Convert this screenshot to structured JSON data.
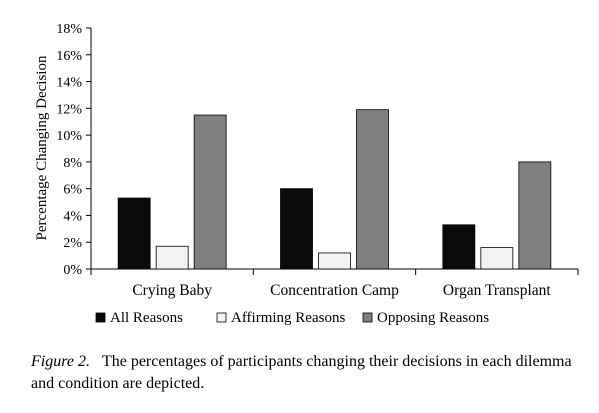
{
  "chart_data": {
    "type": "bar",
    "ylabel": "Percentage Changing Decision",
    "xlabel": "",
    "ylim": [
      0,
      18
    ],
    "yticks": [
      "0%",
      "2%",
      "4%",
      "6%",
      "8%",
      "10%",
      "12%",
      "14%",
      "16%",
      "18%"
    ],
    "ytick_values": [
      0,
      2,
      4,
      6,
      8,
      10,
      12,
      14,
      16,
      18
    ],
    "grid": false,
    "legend_placement": "bottom",
    "categories": [
      "Crying Baby",
      "Concentration Camp",
      "Organ Transplant"
    ],
    "series": [
      {
        "name": "All Reasons",
        "color": "#0a0a0a",
        "values": [
          5.3,
          6.0,
          3.3
        ]
      },
      {
        "name": "Affirming Reasons",
        "color": "#f2f2f2",
        "values": [
          1.7,
          1.2,
          1.6
        ]
      },
      {
        "name": "Opposing Reasons",
        "color": "#808080",
        "values": [
          11.5,
          11.9,
          8.0
        ]
      }
    ]
  },
  "caption": {
    "figure_label": "Figure 2.",
    "text": "The percentages of participants changing their decisions in each dilemma and condition are depicted."
  }
}
